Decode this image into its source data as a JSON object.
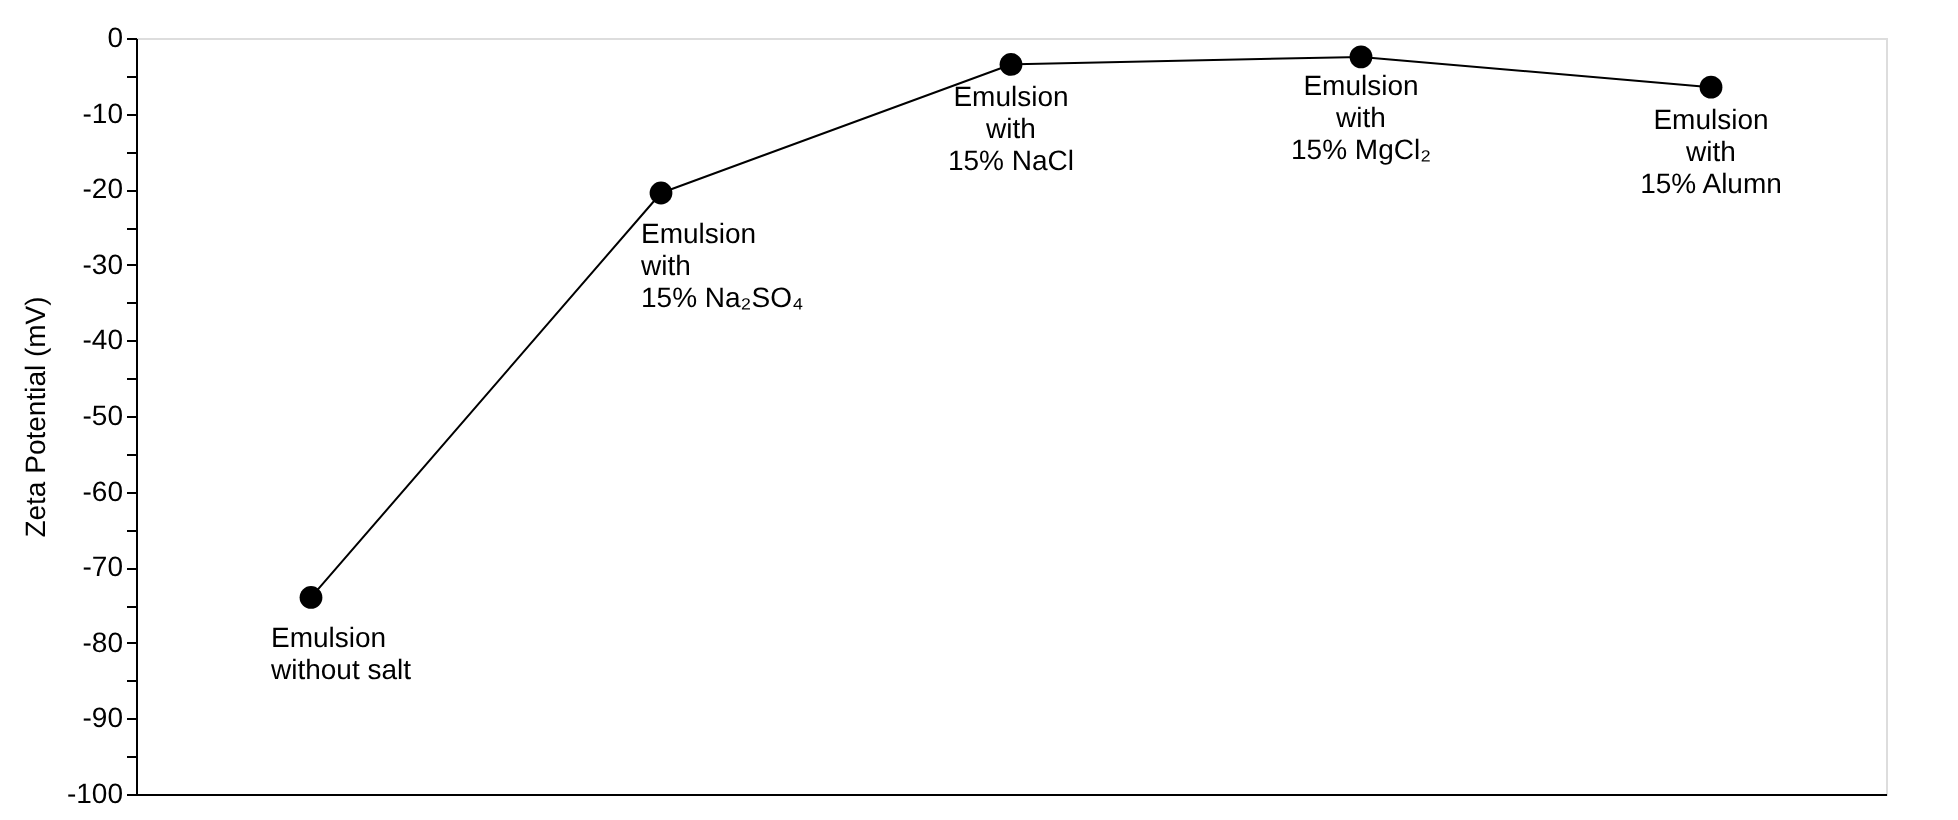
{
  "chart_data": {
    "type": "line",
    "ylabel": "Zeta Potential (mV)",
    "categories": [
      "Emulsion\nwithout salt",
      "Emulsion\nwith\n15% Na₂SO₄",
      "Emulsion\nwith\n15% NaCl",
      "Emulsion\nwith\n15% MgCl₂",
      "Emulsion\nwith\n15% Alumn"
    ],
    "series": [
      {
        "color": "#000000",
        "values": [
          -74,
          -20.5,
          -3.5,
          -2.5,
          -6.5
        ]
      }
    ],
    "ylim": [
      -100,
      0
    ],
    "yticks": [
      -100,
      {
        "value": -95,
        "label": null
      },
      -90,
      {
        "value": -85,
        "label": null
      },
      -80,
      {
        "value": -75,
        "label": null
      },
      -70,
      {
        "value": -65,
        "label": null
      },
      -60,
      {
        "value": -55,
        "label": null
      },
      -50,
      {
        "value": -45,
        "label": null
      },
      -40,
      {
        "value": -35,
        "label": null
      },
      -30,
      {
        "value": -25,
        "label": null
      },
      -20,
      {
        "value": -15,
        "label": null
      },
      -10,
      {
        "value": -5,
        "label": null
      },
      0
    ],
    "tick_labels": "y",
    "marker": "circle",
    "line_style": "solid",
    "grid": false
  }
}
